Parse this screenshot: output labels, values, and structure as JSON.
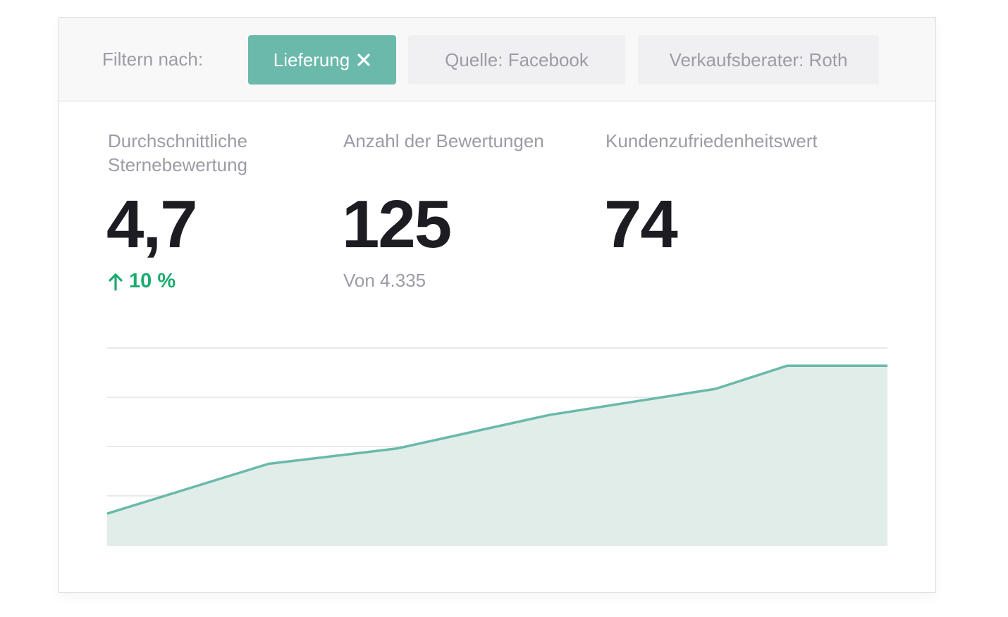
{
  "filters": {
    "label": "Filtern nach:",
    "active_chip": "Lieferung",
    "chips": [
      "Quelle: Facebook",
      "Verkaufsberater: Roth"
    ]
  },
  "metrics": [
    {
      "label": "Durchschnittliche Sternebewertung",
      "value": "4,7",
      "sub": "10 %"
    },
    {
      "label": "Anzahl der Bewertungen",
      "value": "125",
      "sub": "Von 4.335"
    },
    {
      "label": "Kundenzufriedenheitswert",
      "value": "74"
    }
  ],
  "colors": {
    "accent": "#6ab9aa",
    "area_fill": "#e0ede9",
    "trend_up": "#1aab6e"
  },
  "chart_data": {
    "type": "area",
    "x": [
      0,
      1,
      2,
      3,
      4,
      5,
      6,
      7
    ],
    "values": [
      0.64,
      1.65,
      1.96,
      2.64,
      3.17,
      3.64,
      3.64,
      3.64
    ],
    "ylim": [
      0,
      4
    ],
    "gridlines": true
  }
}
